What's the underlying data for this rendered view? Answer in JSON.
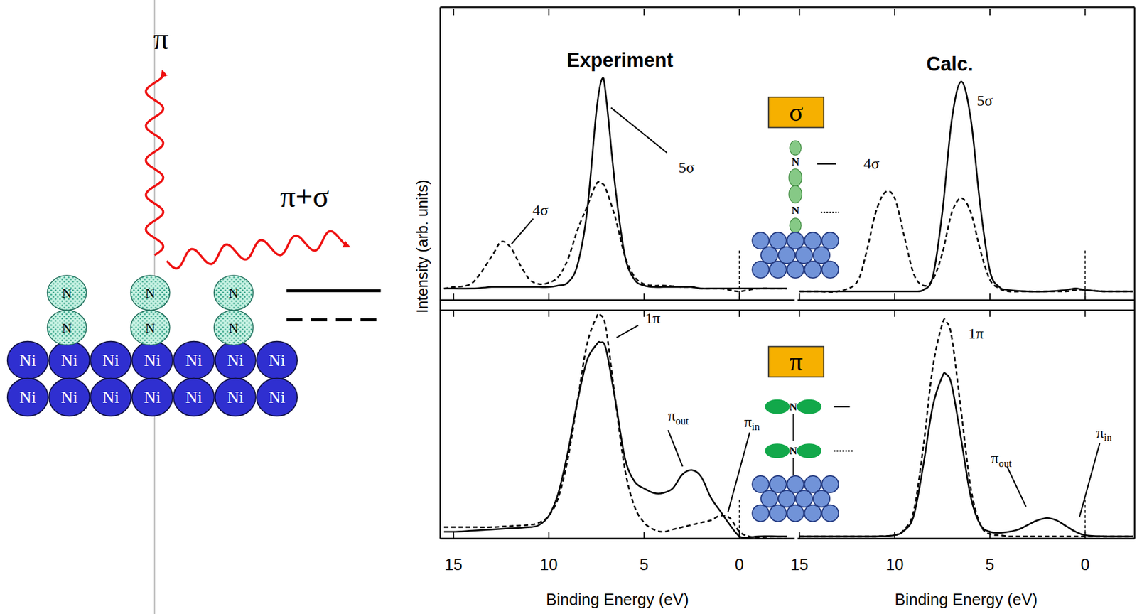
{
  "figure": {
    "y_label": "Intensity (arb. units)",
    "column_titles": [
      "Experiment",
      "Calc."
    ]
  },
  "chart_data": [
    {
      "type": "line",
      "xlim": [
        15.7,
        -2.9
      ],
      "ylim": [
        0,
        1
      ],
      "xticks": [
        15,
        10,
        5,
        0
      ],
      "tick_labels": false,
      "x": [
        15.5,
        15,
        14,
        13,
        12.5,
        12,
        11.5,
        11,
        10.5,
        10,
        9.5,
        9,
        8.5,
        8,
        7.5,
        7.2,
        7,
        6.5,
        6,
        5.5,
        5,
        4.5,
        4,
        3.5,
        3,
        2.5,
        2,
        1.5,
        1,
        0.5,
        0,
        -1,
        -2,
        -2.5
      ],
      "series": [
        {
          "line_style": "solid",
          "color": "#000000",
          "values": [
            0.04,
            0.04,
            0.04,
            0.045,
            0.045,
            0.045,
            0.045,
            0.045,
            0.045,
            0.045,
            0.05,
            0.06,
            0.12,
            0.3,
            0.65,
            0.76,
            0.7,
            0.38,
            0.15,
            0.07,
            0.05,
            0.045,
            0.045,
            0.045,
            0.045,
            0.045,
            0.04,
            0.04,
            0.04,
            0.04,
            0.04,
            0.04,
            0.04,
            0.04
          ]
        },
        {
          "line_style": "dashed",
          "color": "#000000",
          "values": [
            0.04,
            0.045,
            0.06,
            0.15,
            0.2,
            0.18,
            0.12,
            0.07,
            0.055,
            0.06,
            0.08,
            0.14,
            0.24,
            0.32,
            0.4,
            0.4,
            0.38,
            0.28,
            0.15,
            0.08,
            0.055,
            0.05,
            0.05,
            0.048,
            0.045,
            0.045,
            0.04,
            0.04,
            0.04,
            0.035,
            0.03,
            0.04,
            0.04,
            0.04
          ]
        }
      ],
      "annotations": [
        {
          "text": "5σ",
          "x": 7.0,
          "y": 0.68
        },
        {
          "text": "4σ",
          "x": 12.3,
          "y": 0.19
        }
      ],
      "reference_lines": [
        0
      ]
    },
    {
      "type": "line",
      "xlim": [
        15.1,
        -2.6
      ],
      "ylim": [
        0,
        1
      ],
      "xticks": [
        15,
        10,
        5,
        0
      ],
      "tick_labels": false,
      "x": [
        15,
        14,
        13,
        12,
        11.5,
        11,
        10.5,
        10,
        9.5,
        9,
        8.5,
        8,
        7.5,
        7,
        6.5,
        6,
        5.5,
        5,
        4.5,
        4,
        3,
        2,
        1,
        0.5,
        0,
        -1,
        -2,
        -2.5
      ],
      "series": [
        {
          "line_style": "solid",
          "color": "#000000",
          "values": [
            0.03,
            0.03,
            0.03,
            0.03,
            0.03,
            0.03,
            0.03,
            0.03,
            0.03,
            0.03,
            0.035,
            0.08,
            0.3,
            0.62,
            0.75,
            0.62,
            0.32,
            0.1,
            0.045,
            0.035,
            0.03,
            0.03,
            0.035,
            0.04,
            0.035,
            0.03,
            0.03,
            0.03
          ]
        },
        {
          "line_style": "dashed",
          "color": "#000000",
          "values": [
            0.03,
            0.03,
            0.03,
            0.06,
            0.16,
            0.3,
            0.37,
            0.35,
            0.22,
            0.09,
            0.05,
            0.07,
            0.16,
            0.3,
            0.35,
            0.3,
            0.17,
            0.07,
            0.04,
            0.03,
            0.03,
            0.03,
            0.03,
            0.035,
            0.035,
            0.03,
            0.03,
            0.03
          ]
        }
      ],
      "annotations": [
        {
          "text": "5σ",
          "x": 6.3,
          "y": 0.72
        }
      ],
      "reference_lines": [
        0
      ]
    },
    {
      "type": "line",
      "x_label": "Binding Energy (eV)",
      "xlim": [
        15.7,
        -2.9
      ],
      "ylim": [
        0,
        1
      ],
      "xticks": [
        15,
        10,
        5,
        0
      ],
      "tick_labels": "x",
      "x": [
        15.5,
        15,
        14,
        13,
        12,
        11,
        10.5,
        10,
        9.5,
        9,
        8.5,
        8,
        7.5,
        7.3,
        7,
        6.5,
        6,
        5.5,
        5,
        4.5,
        4,
        3.5,
        3,
        2.5,
        2,
        1.5,
        1,
        0.5,
        0,
        -0.5,
        -1,
        -2,
        -2.5
      ],
      "series": [
        {
          "line_style": "solid",
          "color": "#000000",
          "values": [
            0.03,
            0.03,
            0.035,
            0.04,
            0.045,
            0.05,
            0.06,
            0.1,
            0.2,
            0.38,
            0.6,
            0.78,
            0.85,
            0.86,
            0.83,
            0.6,
            0.35,
            0.25,
            0.22,
            0.2,
            0.2,
            0.22,
            0.28,
            0.3,
            0.27,
            0.18,
            0.12,
            0.06,
            0.01,
            0.005,
            0.01,
            0.01,
            0.01
          ]
        },
        {
          "line_style": "dashed",
          "color": "#000000",
          "values": [
            0.05,
            0.05,
            0.05,
            0.05,
            0.055,
            0.06,
            0.07,
            0.1,
            0.18,
            0.35,
            0.6,
            0.85,
            0.97,
            0.98,
            0.92,
            0.6,
            0.3,
            0.14,
            0.07,
            0.04,
            0.03,
            0.04,
            0.05,
            0.06,
            0.07,
            0.08,
            0.1,
            0.09,
            0.03,
            0.01,
            0.005,
            0,
            0
          ]
        }
      ],
      "annotations": [
        {
          "text": "1π",
          "x": 6.6,
          "y": 0.88
        },
        {
          "text": "π",
          "sub": "out",
          "x": 2.6,
          "y": 0.3
        },
        {
          "text": "π",
          "sub": "in",
          "x": 0.6,
          "y": 0.09
        }
      ],
      "reference_lines": [
        0
      ]
    },
    {
      "type": "line",
      "x_label": "Binding Energy (eV)",
      "xlim": [
        15.1,
        -2.6
      ],
      "ylim": [
        0,
        1
      ],
      "xticks": [
        15,
        10,
        5,
        0
      ],
      "tick_labels": "x",
      "x": [
        15,
        14,
        13,
        12,
        11,
        10,
        9.5,
        9,
        8.5,
        8,
        7.5,
        7.3,
        7,
        6.5,
        6,
        5.5,
        5,
        4.5,
        4,
        3.5,
        3,
        2.5,
        2,
        1.5,
        1,
        0.5,
        0,
        -1,
        -2,
        -2.5
      ],
      "series": [
        {
          "line_style": "solid",
          "color": "#000000",
          "values": [
            0.01,
            0.01,
            0.01,
            0.01,
            0.01,
            0.015,
            0.035,
            0.1,
            0.32,
            0.58,
            0.71,
            0.72,
            0.67,
            0.43,
            0.18,
            0.06,
            0.03,
            0.025,
            0.03,
            0.04,
            0.06,
            0.08,
            0.09,
            0.08,
            0.055,
            0.03,
            0.015,
            0.01,
            0.01,
            0.01
          ]
        },
        {
          "line_style": "dashed",
          "color": "#000000",
          "values": [
            0.01,
            0.01,
            0.01,
            0.01,
            0.01,
            0.015,
            0.04,
            0.12,
            0.4,
            0.75,
            0.94,
            0.95,
            0.88,
            0.55,
            0.22,
            0.06,
            0.02,
            0.015,
            0.01,
            0.01,
            0.01,
            0.01,
            0.01,
            0.01,
            0.01,
            0.01,
            0.01,
            0.01,
            0.01,
            0.01
          ]
        }
      ],
      "annotations": [
        {
          "text": "1π",
          "x": 6.8,
          "y": 0.68
        },
        {
          "text": "π",
          "sub": "out",
          "x": 2.8,
          "y": 0.07
        },
        {
          "text": "π",
          "sub": "in",
          "x": 0.3,
          "y": 0.03
        }
      ],
      "reference_lines": [
        0
      ]
    }
  ],
  "insets": [
    {
      "label": "σ",
      "atoms": [
        "N",
        "N"
      ],
      "orbital": "4σ"
    },
    {
      "label": "π",
      "atoms": [
        "N",
        "N"
      ]
    }
  ],
  "diagram": {
    "photons": [
      {
        "label": "π"
      },
      {
        "label": "π+σ"
      }
    ],
    "adsorbates": [
      [
        "N",
        "N"
      ],
      [
        "N",
        "N"
      ],
      [
        "N",
        "N"
      ]
    ],
    "substrate": [
      [
        "Ni",
        "Ni",
        "Ni",
        "Ni",
        "Ni",
        "Ni",
        "Ni"
      ],
      [
        "Ni",
        "Ni",
        "Ni",
        "Ni",
        "Ni",
        "Ni",
        "Ni"
      ]
    ]
  }
}
